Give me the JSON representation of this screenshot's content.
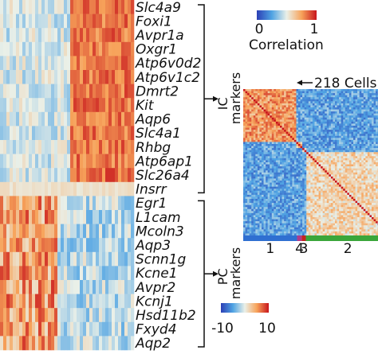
{
  "chart_data": [
    {
      "type": "heatmap",
      "rows": [
        {
          "gene": "Slc4a9",
          "group": "IC"
        },
        {
          "gene": "Foxi1",
          "group": "IC"
        },
        {
          "gene": "Avpr1a",
          "group": "IC"
        },
        {
          "gene": "Oxgr1",
          "group": "IC"
        },
        {
          "gene": "Atp6v0d2",
          "group": "IC"
        },
        {
          "gene": "Atp6v1c2",
          "group": "IC"
        },
        {
          "gene": "Dmrt2",
          "group": "IC"
        },
        {
          "gene": "Kit",
          "group": "IC"
        },
        {
          "gene": "Aqp6",
          "group": "IC"
        },
        {
          "gene": "Slc4a1",
          "group": "IC"
        },
        {
          "gene": "Rhbg",
          "group": "IC"
        },
        {
          "gene": "Atp6ap1",
          "group": "IC"
        },
        {
          "gene": "Slc26a4",
          "group": "IC"
        },
        {
          "gene": "Insrr",
          "group": "IC"
        },
        {
          "gene": "Egr1",
          "group": "PC"
        },
        {
          "gene": "L1cam",
          "group": "PC"
        },
        {
          "gene": "Mcoln3",
          "group": "PC"
        },
        {
          "gene": "Aqp3",
          "group": "PC"
        },
        {
          "gene": "Scnn1g",
          "group": "PC"
        },
        {
          "gene": "Kcne1",
          "group": "PC"
        },
        {
          "gene": "Avpr2",
          "group": "PC"
        },
        {
          "gene": "Kcnj1",
          "group": "PC"
        },
        {
          "gene": "Hsd11b2",
          "group": "PC"
        },
        {
          "gene": "Fxyd4",
          "group": "PC"
        },
        {
          "gene": "Aqp2",
          "group": "PC"
        }
      ],
      "groups": [
        {
          "id": "IC",
          "label_line1": "IC",
          "label_line2": "markers"
        },
        {
          "id": "PC",
          "label_line1": "PC",
          "label_line2": "markers"
        }
      ],
      "colorbar": {
        "min": -10,
        "max": 10,
        "min_label": "-10",
        "max_label": "10",
        "colors": [
          "#2b3fb5",
          "#4fa3e3",
          "#eaf0e8",
          "#f7a35a",
          "#c8151c"
        ]
      }
    },
    {
      "type": "heatmap",
      "annotation": "218 Cells",
      "clusters": [
        {
          "label": "1",
          "color": "#2f6fd1",
          "size": 80
        },
        {
          "label": "4",
          "color": "#b13a8a",
          "size": 7
        },
        {
          "label": "3",
          "color": "#c4261f",
          "size": 6
        },
        {
          "label": "2",
          "color": "#3aa63a",
          "size": 125
        }
      ],
      "colorbar": {
        "min": 0,
        "max": 1,
        "min_label": "0",
        "max_label": "1",
        "title": "Correlation",
        "colors": [
          "#2b3fb5",
          "#4fa3e3",
          "#eaf0e8",
          "#f7a35a",
          "#c8151c"
        ]
      }
    }
  ]
}
